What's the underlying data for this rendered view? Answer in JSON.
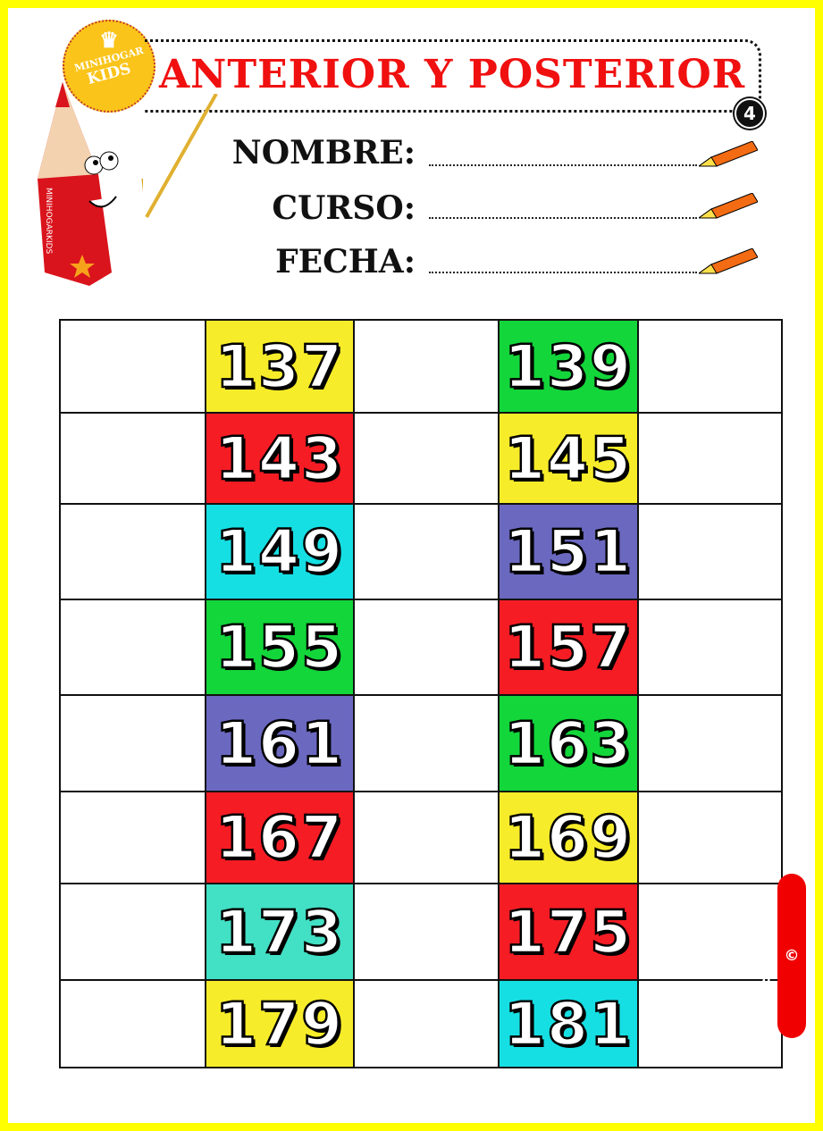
{
  "logo": {
    "line1": "MINIHOGAR",
    "line2": "KIDS"
  },
  "title": "ANTERIOR Y POSTERIOR",
  "badge": "4",
  "fields": {
    "name": "NOMBRE:",
    "course": "CURSO:",
    "date": "FECHA:"
  },
  "mascot_text": "MINIHOGARKIDS",
  "copyright": "© MINIHOGARKIDS",
  "colors": {
    "yellow": "#f7ec2a",
    "red": "#f51c24",
    "cyan": "#16dfe3",
    "green": "#13d63a",
    "purple": "#6b68c0",
    "teal": "#42e0c4",
    "frame": "#ffff00"
  },
  "rows": [
    {
      "a": "137",
      "a_color": "yellow",
      "b": "139",
      "b_color": "green"
    },
    {
      "a": "143",
      "a_color": "red",
      "b": "145",
      "b_color": "yellow"
    },
    {
      "a": "149",
      "a_color": "cyan",
      "b": "151",
      "b_color": "purple"
    },
    {
      "a": "155",
      "a_color": "green",
      "b": "157",
      "b_color": "red"
    },
    {
      "a": "161",
      "a_color": "purple",
      "b": "163",
      "b_color": "green"
    },
    {
      "a": "167",
      "a_color": "red",
      "b": "169",
      "b_color": "yellow"
    },
    {
      "a": "173",
      "a_color": "teal",
      "b": "175",
      "b_color": "red"
    },
    {
      "a": "179",
      "a_color": "yellow",
      "b": "181",
      "b_color": "cyan"
    }
  ]
}
